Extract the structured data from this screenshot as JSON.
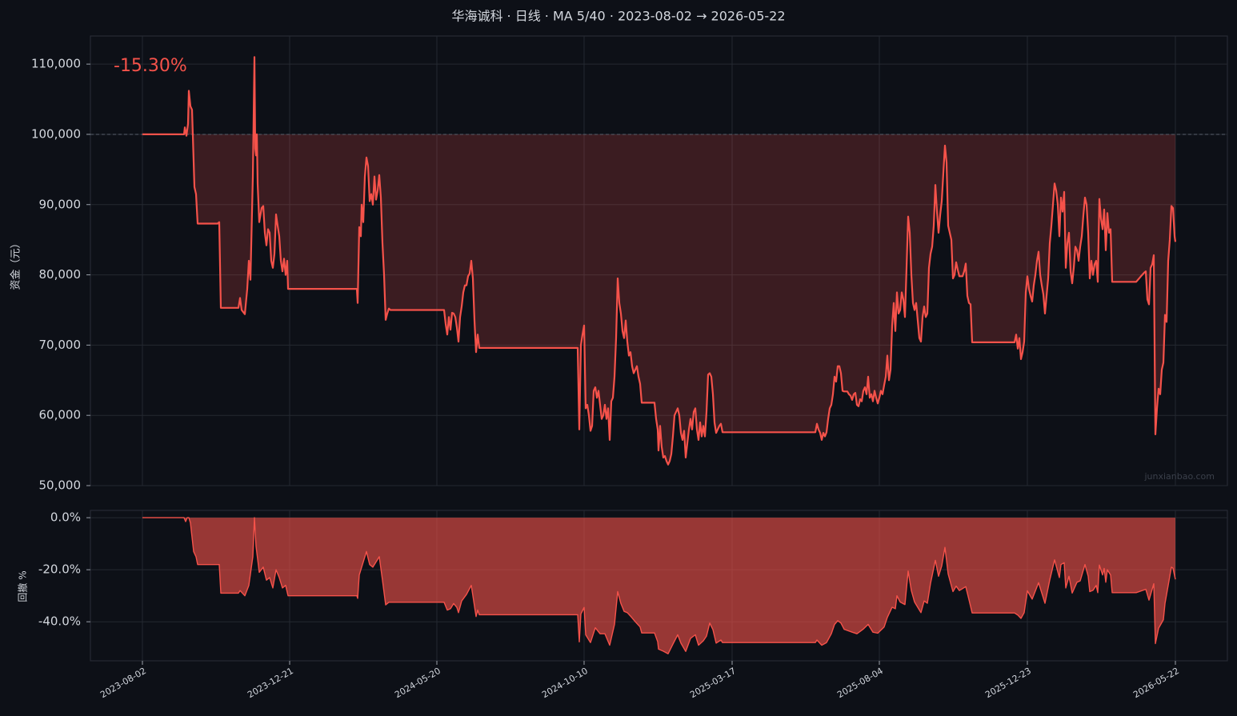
{
  "chart_data": [
    {
      "type": "line",
      "title": "华海诚科 · 日线 · MA 5/40 · 2023-08-02 → 2026-05-22",
      "annotation": "-15.30%",
      "ylabel": "资金（元）",
      "watermark": "junxianbao.com",
      "color": "#f5524a",
      "baseline": 100000,
      "grid": true,
      "ylim": [
        50000,
        114000
      ],
      "yticks": [
        {
          "value": 50000,
          "label": "50,000"
        },
        {
          "value": 60000,
          "label": "60,000"
        },
        {
          "value": 70000,
          "label": "70,000"
        },
        {
          "value": 80000,
          "label": "80,000"
        },
        {
          "value": 90000,
          "label": "90,000"
        },
        {
          "value": 100000,
          "label": "100,000"
        },
        {
          "value": 110000,
          "label": "110,000"
        }
      ],
      "xlim": [
        -65,
        1356
      ],
      "x": [
        0,
        52,
        53,
        55,
        57,
        58,
        60,
        62,
        65,
        67,
        69,
        94,
        96,
        98,
        120,
        122,
        124,
        128,
        131,
        133,
        135,
        138,
        140,
        141,
        142,
        143,
        144,
        146,
        149,
        151,
        153,
        155,
        157,
        159,
        161,
        163,
        165,
        167,
        169,
        171,
        173,
        175,
        177,
        179,
        181,
        182,
        268,
        269,
        271,
        273,
        274,
        276,
        278,
        280,
        282,
        284,
        286,
        288,
        290,
        292,
        294,
        296,
        298,
        300,
        302,
        304,
        306,
        308,
        310,
        377,
        379,
        381,
        383,
        385,
        387,
        389,
        391,
        393,
        395,
        397,
        399,
        401,
        403,
        405,
        407,
        409,
        411,
        413,
        415,
        417,
        419,
        421,
        544,
        546,
        548,
        550,
        552,
        554,
        556,
        558,
        560,
        562,
        564,
        566,
        568,
        570,
        572,
        574,
        576,
        578,
        580,
        582,
        584,
        586,
        588,
        590,
        592,
        594,
        596,
        598,
        600,
        602,
        604,
        606,
        608,
        610,
        612,
        614,
        616,
        618,
        620,
        622,
        624,
        640,
        642,
        644,
        645,
        647,
        649,
        651,
        653,
        655,
        657,
        659,
        661,
        663,
        665,
        667,
        669,
        671,
        673,
        675,
        677,
        679,
        681,
        683,
        685,
        687,
        689,
        691,
        693,
        695,
        697,
        699,
        701,
        703,
        705,
        707,
        709,
        711,
        713,
        715,
        717,
        719,
        721,
        723,
        725,
        841,
        843,
        845,
        847,
        849,
        851,
        853,
        855,
        857,
        859,
        861,
        863,
        865,
        867,
        869,
        871,
        873,
        875,
        877,
        881,
        883,
        885,
        887,
        889,
        891,
        893,
        895,
        897,
        899,
        901,
        903,
        905,
        907,
        909,
        911,
        913,
        915,
        917,
        919,
        921,
        923,
        925,
        927,
        929,
        931,
        933,
        935,
        937,
        939,
        941,
        943,
        945,
        947,
        949,
        951,
        953,
        955,
        957,
        959,
        961,
        963,
        965,
        967,
        969,
        971,
        973,
        975,
        977,
        979,
        981,
        983,
        985,
        987,
        989,
        991,
        993,
        995,
        997,
        999,
        1001,
        1003,
        1005,
        1007,
        1009,
        1011,
        1013,
        1015,
        1017,
        1019,
        1021,
        1025,
        1027,
        1029,
        1031,
        1033,
        1035,
        1037,
        1090,
        1092,
        1094,
        1096,
        1098,
        1100,
        1102,
        1104,
        1106,
        1108,
        1110,
        1112,
        1114,
        1116,
        1118,
        1120,
        1122,
        1124,
        1126,
        1128,
        1130,
        1132,
        1134,
        1136,
        1138,
        1140,
        1142,
        1144,
        1146,
        1148,
        1150,
        1152,
        1154,
        1156,
        1158,
        1160,
        1162,
        1164,
        1166,
        1168,
        1170,
        1172,
        1174,
        1176,
        1178,
        1180,
        1182,
        1184,
        1186,
        1188,
        1190,
        1192,
        1194,
        1196,
        1198,
        1200,
        1202,
        1204,
        1206,
        1208,
        1210,
        1212,
        1242,
        1248,
        1252,
        1254,
        1256,
        1258,
        1260,
        1262,
        1264,
        1266,
        1268,
        1270,
        1272,
        1274,
        1276,
        1278,
        1280,
        1282,
        1284,
        1286,
        1288,
        1290,
        1291
      ],
      "values": [
        100000,
        100000,
        101000,
        99800,
        101500,
        106200,
        104000,
        103500,
        92500,
        91500,
        87300,
        87300,
        87500,
        75300,
        75300,
        76700,
        75000,
        74400,
        78000,
        82000,
        79300,
        94000,
        111000,
        98000,
        97000,
        100000,
        93000,
        87500,
        89500,
        89800,
        86000,
        84200,
        86500,
        86000,
        82000,
        81000,
        83000,
        88600,
        87000,
        85500,
        82000,
        80500,
        82300,
        80000,
        82000,
        78000,
        78000,
        76000,
        86800,
        85500,
        90000,
        87500,
        94000,
        96700,
        95500,
        90500,
        91500,
        90000,
        94000,
        90700,
        92000,
        94200,
        91000,
        84500,
        80000,
        73600,
        74500,
        75200,
        75000,
        75000,
        73000,
        71500,
        74000,
        72200,
        74600,
        74500,
        74000,
        72500,
        70500,
        74000,
        75500,
        77500,
        78500,
        78500,
        79800,
        80200,
        82000,
        79500,
        73500,
        69000,
        71500,
        69600,
        69600,
        58000,
        70000,
        71500,
        72800,
        61000,
        61500,
        60000,
        57800,
        58500,
        63500,
        64000,
        62500,
        63500,
        61500,
        59500,
        60000,
        61500,
        59500,
        61000,
        56500,
        62000,
        62500,
        65500,
        71000,
        79500,
        76000,
        74500,
        72000,
        71000,
        73500,
        70500,
        68500,
        69000,
        67000,
        66000,
        66500,
        67000,
        65500,
        64500,
        61800,
        61800,
        59500,
        58000,
        55000,
        58500,
        55500,
        54000,
        54200,
        53500,
        53000,
        53500,
        54500,
        57000,
        60000,
        60500,
        61000,
        60000,
        57500,
        56500,
        57800,
        54000,
        56000,
        58000,
        59500,
        58000,
        60500,
        61000,
        58000,
        56500,
        59000,
        57000,
        58500,
        57000,
        60500,
        65800,
        66000,
        65500,
        63000,
        59000,
        57500,
        58000,
        58500,
        58800,
        57600,
        57600,
        58800,
        58000,
        57500,
        56500,
        57500,
        57000,
        57600,
        59500,
        61000,
        61500,
        63000,
        65500,
        64800,
        67000,
        67000,
        66000,
        63500,
        63400,
        63400,
        63000,
        62800,
        62200,
        63000,
        63200,
        61500,
        61300,
        62300,
        62000,
        63500,
        64000,
        63000,
        65500,
        62500,
        63000,
        62000,
        63500,
        62500,
        61700,
        62500,
        63500,
        63000,
        64300,
        65500,
        68500,
        65000,
        66500,
        72800,
        76000,
        72000,
        77500,
        74500,
        75000,
        77500,
        76500,
        74000,
        81000,
        88300,
        86000,
        80000,
        76000,
        75000,
        76000,
        73500,
        71000,
        70500,
        74000,
        75500,
        74000,
        74500,
        81000,
        83000,
        84000,
        87000,
        92800,
        89000,
        86000,
        88500,
        90500,
        94500,
        98400,
        96000,
        87000,
        86000,
        85000,
        79500,
        80000,
        81800,
        80700,
        79800,
        79800,
        80500,
        81600,
        77000,
        76000,
        75800,
        70400,
        70400,
        71500,
        69500,
        71000,
        68000,
        69000,
        70500,
        77500,
        79800,
        78000,
        77000,
        76200,
        78500,
        80000,
        82000,
        83300,
        80000,
        78500,
        77200,
        74500,
        77000,
        79500,
        84500,
        87000,
        90000,
        93000,
        92000,
        90000,
        85500,
        91000,
        89000,
        91800,
        81000,
        84500,
        86000,
        80500,
        78800,
        81000,
        84000,
        83500,
        82000,
        84000,
        85500,
        88500,
        91000,
        90000,
        86000,
        79500,
        82000,
        80000,
        81500,
        82000,
        79000,
        90800,
        88000,
        86500,
        89300,
        83500,
        88800,
        86000,
        86500,
        79000,
        79000,
        79800,
        80300,
        80500,
        76500,
        75800,
        81000,
        81500,
        82800,
        57300,
        61000,
        63800,
        63000,
        66500,
        67500,
        74300,
        73300,
        82000,
        85000,
        89800,
        89500,
        85500,
        84700
      ]
    },
    {
      "type": "area",
      "ylabel": "回撤 %",
      "color": "#f5524a",
      "grid": true,
      "ylim": [
        -55,
        2.8
      ],
      "yticks": [
        {
          "value": -40,
          "label": "-40.0%"
        },
        {
          "value": -20,
          "label": "-20.0%"
        },
        {
          "value": 0,
          "label": "0.0%"
        }
      ],
      "xlim": [
        -65,
        1356
      ],
      "xticks": [
        {
          "value": 0,
          "label": "2023-08-02"
        },
        {
          "value": 184,
          "label": "2023-12-21"
        },
        {
          "value": 368,
          "label": "2024-05-20"
        },
        {
          "value": 552,
          "label": "2024-10-10"
        },
        {
          "value": 737,
          "label": "2025-03-17"
        },
        {
          "value": 921,
          "label": "2025-08-04"
        },
        {
          "value": 1106,
          "label": "2025-12-23"
        },
        {
          "value": 1291,
          "label": "2026-05-22"
        }
      ],
      "x": [
        0,
        52,
        54,
        56,
        58,
        60,
        64,
        67,
        69,
        96,
        98,
        120,
        122,
        128,
        133,
        138,
        140,
        142,
        144,
        146,
        151,
        155,
        159,
        163,
        167,
        171,
        175,
        179,
        182,
        268,
        269,
        271,
        274,
        278,
        280,
        284,
        288,
        292,
        296,
        300,
        304,
        308,
        377,
        381,
        385,
        389,
        393,
        395,
        399,
        405,
        411,
        415,
        417,
        419,
        421,
        544,
        546,
        548,
        552,
        554,
        560,
        566,
        572,
        578,
        584,
        590,
        594,
        598,
        602,
        606,
        610,
        616,
        622,
        624,
        640,
        644,
        645,
        651,
        657,
        663,
        669,
        673,
        679,
        685,
        691,
        695,
        701,
        705,
        709,
        713,
        717,
        723,
        725,
        841,
        843,
        849,
        855,
        861,
        865,
        869,
        873,
        877,
        887,
        893,
        901,
        907,
        913,
        919,
        927,
        931,
        937,
        941,
        943,
        947,
        953,
        957,
        961,
        965,
        973,
        977,
        981,
        985,
        991,
        995,
        999,
        1003,
        1007,
        1013,
        1017,
        1021,
        1029,
        1033,
        1037,
        1090,
        1094,
        1098,
        1102,
        1106,
        1112,
        1120,
        1128,
        1134,
        1140,
        1146,
        1148,
        1152,
        1154,
        1158,
        1162,
        1168,
        1172,
        1178,
        1182,
        1184,
        1188,
        1192,
        1194,
        1196,
        1200,
        1202,
        1204,
        1206,
        1210,
        1212,
        1242,
        1254,
        1258,
        1264,
        1266,
        1270,
        1276,
        1278,
        1282,
        1286,
        1288,
        1291
      ],
      "values": [
        0,
        0,
        -1.5,
        0,
        0,
        -2,
        -13,
        -15,
        -18,
        -18,
        -29,
        -29,
        -28,
        -30,
        -26,
        -15,
        0,
        -11,
        -16,
        -21,
        -19,
        -24,
        -23,
        -27,
        -20,
        -23,
        -27,
        -26,
        -30,
        -30,
        -31,
        -22,
        -19,
        -15,
        -13,
        -18,
        -19,
        -17,
        -15,
        -24,
        -33.5,
        -32.5,
        -32.5,
        -35.5,
        -35,
        -33,
        -34.5,
        -36.5,
        -32,
        -29.5,
        -26,
        -34,
        -38,
        -35.5,
        -37.3,
        -37.3,
        -47.7,
        -37,
        -34.5,
        -45,
        -48,
        -42.3,
        -44.6,
        -44.6,
        -49,
        -41,
        -28.4,
        -33,
        -36,
        -36.5,
        -37.8,
        -40,
        -42,
        -44.3,
        -44.3,
        -47.7,
        -50.5,
        -51.3,
        -52.3,
        -48.6,
        -45,
        -48.2,
        -51.4,
        -46.4,
        -45,
        -49,
        -47.3,
        -45.5,
        -40.5,
        -43,
        -48.2,
        -47,
        -48,
        -48,
        -47,
        -49,
        -48,
        -44.6,
        -41,
        -39.6,
        -40.5,
        -42.9,
        -44,
        -44.6,
        -42.8,
        -41,
        -44,
        -44.4,
        -42,
        -38.3,
        -34.4,
        -35,
        -30,
        -32.4,
        -33.4,
        -20.5,
        -28,
        -32.4,
        -36.5,
        -32,
        -32.9,
        -25.2,
        -16.4,
        -22.5,
        -18.5,
        -11.4,
        -21.6,
        -28.4,
        -26.3,
        -28,
        -26.5,
        -31.5,
        -36.6,
        -36.6,
        -37.4,
        -38.7,
        -36.5,
        -28.1,
        -31.3,
        -25,
        -32.9,
        -23.9,
        -16.2,
        -23,
        -18,
        -17.3,
        -27,
        -22.5,
        -29,
        -24.8,
        -24.3,
        -18,
        -22.5,
        -28.4,
        -27.9,
        -26,
        -28.8,
        -18.2,
        -22,
        -19.5,
        -24.8,
        -20,
        -22,
        -28.8,
        -28.8,
        -27.5,
        -31.7,
        -25.4,
        -48.4,
        -42.5,
        -39.2,
        -33,
        -26,
        -19,
        -19.4,
        -23.7
      ]
    }
  ]
}
